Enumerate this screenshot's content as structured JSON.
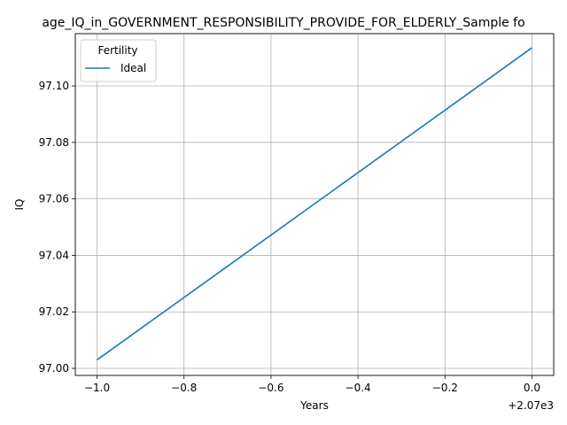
{
  "chart_data": {
    "type": "line",
    "title": "age_IQ_in_GOVERNMENT_RESPONSIBILITY_PROVIDE_FOR_ELDERLY_Sample fo",
    "xlabel": "Years",
    "ylabel": "IQ",
    "x_offset_label": "+2.07e3",
    "xlim": [
      -1.05,
      0.05
    ],
    "ylim": [
      96.9975,
      97.1185
    ],
    "x_ticks": [
      -1.0,
      -0.8,
      -0.6,
      -0.4,
      -0.2,
      0.0
    ],
    "x_tick_labels": [
      "−1.0",
      "−0.8",
      "−0.6",
      "−0.4",
      "−0.2",
      "0.0"
    ],
    "y_ticks": [
      97.0,
      97.02,
      97.04,
      97.06,
      97.08,
      97.1
    ],
    "y_tick_labels": [
      "97.00",
      "97.02",
      "97.04",
      "97.06",
      "97.08",
      "97.10"
    ],
    "grid": true,
    "legend": {
      "title": "Fertility",
      "position": "top-left"
    },
    "series": [
      {
        "name": "Ideal",
        "color": "#1f77b4",
        "x": [
          -1.0,
          0.0
        ],
        "y": [
          97.003,
          97.1135
        ]
      }
    ]
  }
}
